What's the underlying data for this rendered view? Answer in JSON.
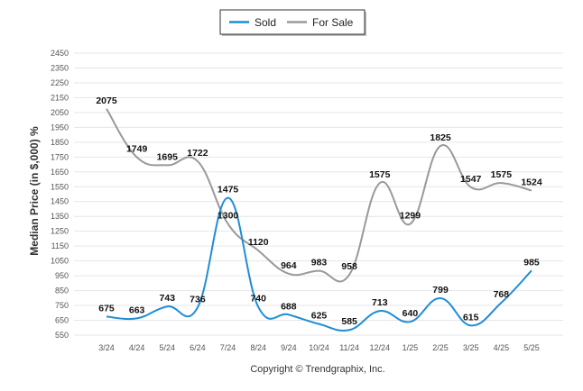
{
  "chart_data": {
    "type": "line",
    "title": "",
    "ylabel": "Median Price (in $,000) %",
    "xlabel": "",
    "x": [
      "3/24",
      "4/24",
      "5/24",
      "6/24",
      "7/24",
      "8/24",
      "9/24",
      "10/24",
      "11/24",
      "12/24",
      "1/25",
      "2/25",
      "3/25",
      "4/25",
      "5/25"
    ],
    "ylim": [
      550,
      2450
    ],
    "yticks": [
      550,
      650,
      750,
      850,
      950,
      1050,
      1150,
      1250,
      1350,
      1450,
      1550,
      1650,
      1750,
      1850,
      1950,
      2050,
      2150,
      2250,
      2350,
      2450
    ],
    "grid": true,
    "legend_position": "top-center",
    "series": [
      {
        "name": "Sold",
        "color": "#1f8dd6",
        "values": [
          675,
          663,
          743,
          736,
          1475,
          740,
          688,
          625,
          585,
          713,
          640,
          799,
          615,
          768,
          985
        ]
      },
      {
        "name": "For Sale",
        "color": "#999999",
        "values": [
          2075,
          1749,
          1695,
          1722,
          1300,
          1120,
          964,
          983,
          958,
          1575,
          1299,
          1825,
          1547,
          1575,
          1524
        ]
      }
    ]
  },
  "credit": "Copyright © Trendgraphix, Inc."
}
